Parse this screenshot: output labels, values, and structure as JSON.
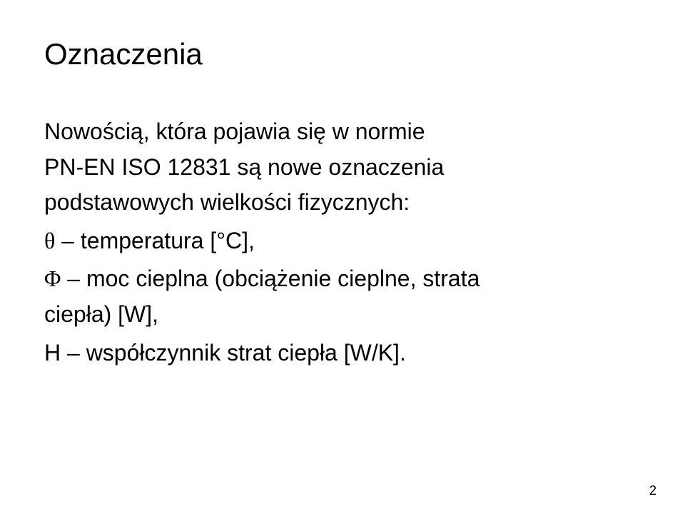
{
  "title": "Oznaczenia",
  "paragraph_line1": "Nowością, która pojawia się w normie",
  "paragraph_line2": "PN-EN ISO 12831 są nowe oznaczenia",
  "paragraph_line3": "podstawowych wielkości fizycznych:",
  "item1_symbol": "θ",
  "item1_text": " – temperatura [°C],",
  "item2_symbol": "Φ",
  "item2_line1": " – moc cieplna (obciążenie cieplne, strata",
  "item2_line2": "ciepła) [W],",
  "item3": "H – współczynnik strat ciepła [W/K].",
  "page_number": "2",
  "colors": {
    "background": "#ffffff",
    "text": "#000000"
  },
  "fontsize": {
    "title": 42,
    "body": 32,
    "pagenum": 18
  }
}
